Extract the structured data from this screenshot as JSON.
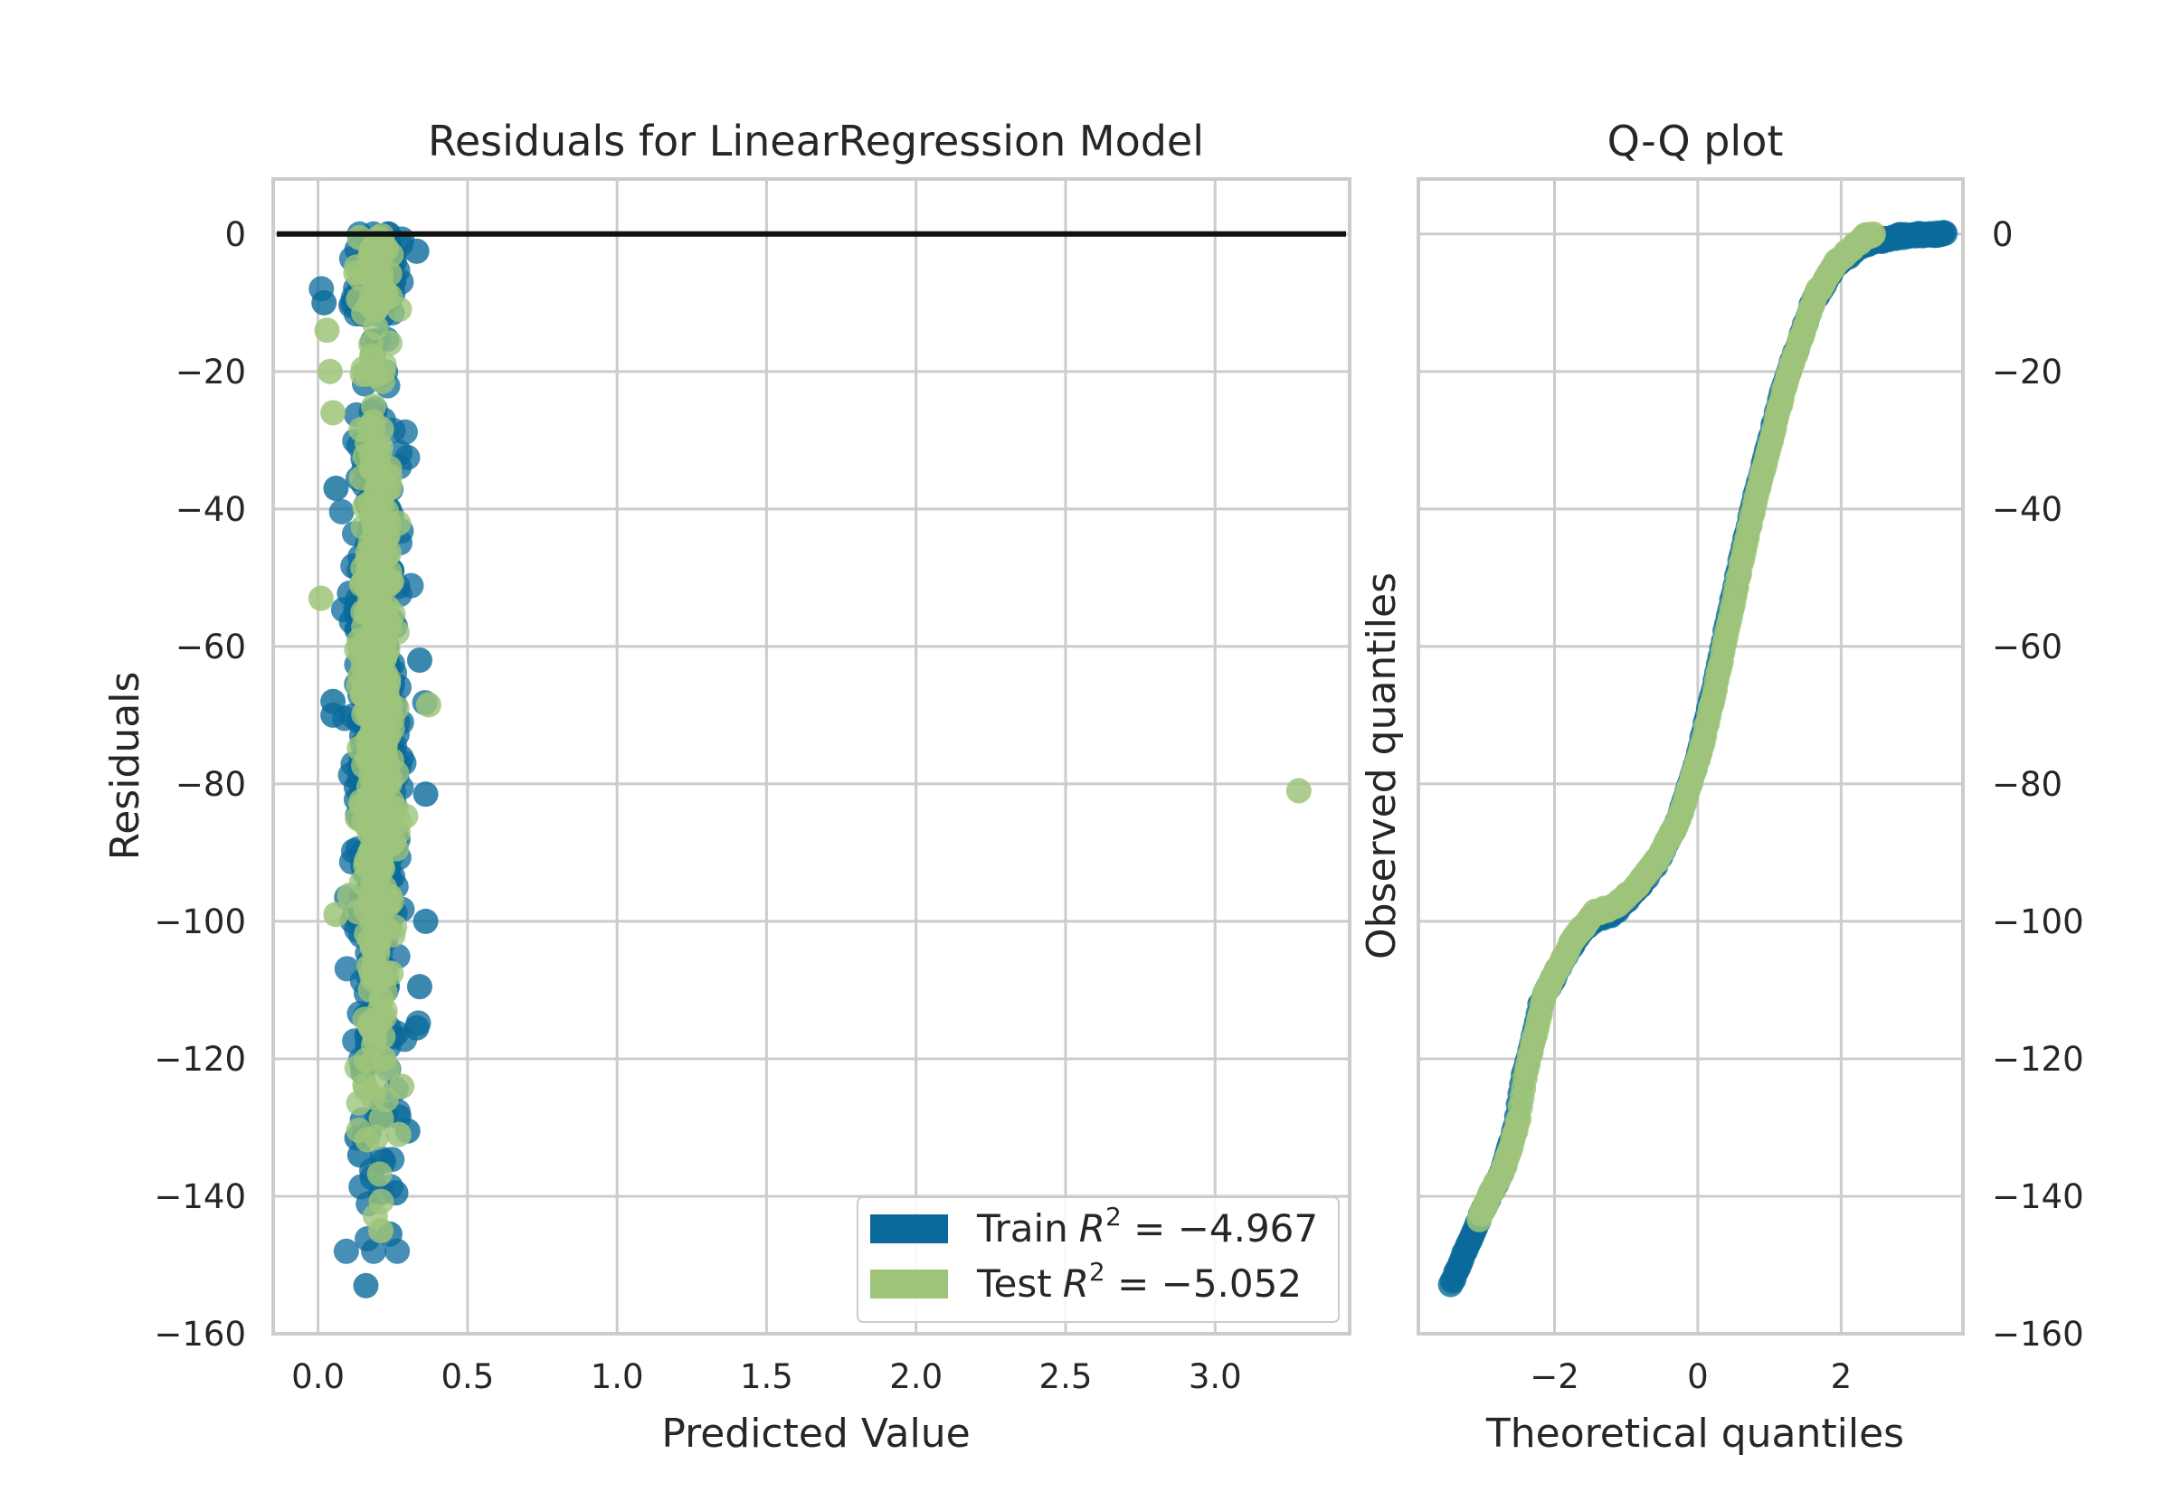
{
  "colors": {
    "train": "#0a6a9b",
    "test": "#9ec47a",
    "zero_line": "#111111",
    "grid": "#cccccc"
  },
  "chart_data": [
    {
      "type": "scatter",
      "title": "Residuals for LinearRegression Model",
      "xlabel": "Predicted Value",
      "ylabel": "Residuals",
      "xlim": [
        -0.15,
        3.45
      ],
      "ylim": [
        -160,
        8
      ],
      "xticks": [
        "0.0",
        "0.5",
        "1.0",
        "1.5",
        "2.0",
        "2.5",
        "3.0"
      ],
      "yticks": [
        "0",
        "−20",
        "−40",
        "−60",
        "−80",
        "−100",
        "−120",
        "−140",
        "−160"
      ],
      "grid": true,
      "hline": 0,
      "legend": {
        "placement": "lower-right",
        "entries": [
          {
            "name": "Train",
            "r2_label": "R",
            "r2_exp": "2",
            "r2_value": " = −4.967"
          },
          {
            "name": "Test",
            "r2_label": "R",
            "r2_exp": "2",
            "r2_value": " = −5.052"
          }
        ]
      },
      "series": [
        {
          "name": "Train",
          "notable_points": [
            {
              "x": 0.16,
              "y": -153
            },
            {
              "x": 0.24,
              "y": -145.5
            },
            {
              "x": 0.13,
              "y": -131.5
            },
            {
              "x": 0.14,
              "y": -134
            },
            {
              "x": 0.26,
              "y": -139.5
            },
            {
              "x": 0.21,
              "y": -139.5
            },
            {
              "x": 0.3,
              "y": -130.5
            },
            {
              "x": 0.15,
              "y": -122
            },
            {
              "x": 0.33,
              "y": -115.5
            },
            {
              "x": 0.34,
              "y": -109.5
            },
            {
              "x": 0.05,
              "y": -68
            },
            {
              "x": 0.05,
              "y": -70
            },
            {
              "x": 0.34,
              "y": -62
            },
            {
              "x": 0.36,
              "y": -100
            },
            {
              "x": 0.06,
              "y": -37
            },
            {
              "x": 0.02,
              "y": -10
            },
            {
              "x": 0.33,
              "y": -2.5
            },
            {
              "x": 0.36,
              "y": -81.5
            }
          ]
        },
        {
          "name": "Test",
          "notable_points": [
            {
              "x": 3.28,
              "y": -81
            },
            {
              "x": 0.01,
              "y": -53
            },
            {
              "x": 0.37,
              "y": -68.5
            },
            {
              "x": 0.06,
              "y": -99
            },
            {
              "x": 0.05,
              "y": -26
            },
            {
              "x": 0.04,
              "y": -20
            },
            {
              "x": 0.03,
              "y": -14
            },
            {
              "x": 0.21,
              "y": -145
            },
            {
              "x": 0.28,
              "y": -124
            },
            {
              "x": 0.27,
              "y": -131
            },
            {
              "x": 0.22,
              "y": -120
            }
          ]
        }
      ]
    },
    {
      "type": "scatter",
      "title": "Q-Q plot",
      "xlabel": "Theoretical quantiles",
      "ylabel": "Observed quantiles",
      "xlim": [
        -3.9,
        3.7
      ],
      "ylim": [
        -160,
        8
      ],
      "xticks": [
        "−2",
        "0",
        "2"
      ],
      "yticks": [
        "0",
        "−20",
        "−40",
        "−60",
        "−80",
        "−100",
        "−120",
        "−140",
        "−160"
      ],
      "grid": true,
      "curve_points": [
        [
          -3.45,
          -153
        ],
        [
          -3.15,
          -145.5
        ],
        [
          -2.95,
          -141
        ],
        [
          -2.75,
          -137
        ],
        [
          -2.55,
          -130
        ],
        [
          -2.45,
          -123
        ],
        [
          -2.3,
          -117
        ],
        [
          -2.2,
          -112
        ],
        [
          -2.0,
          -108
        ],
        [
          -1.8,
          -104
        ],
        [
          -1.5,
          -100
        ],
        [
          -1.2,
          -99
        ],
        [
          -0.9,
          -96
        ],
        [
          -0.6,
          -92
        ],
        [
          -0.3,
          -86
        ],
        [
          0.0,
          -76
        ],
        [
          0.2,
          -67
        ],
        [
          0.4,
          -57
        ],
        [
          0.6,
          -47
        ],
        [
          0.8,
          -38
        ],
        [
          1.0,
          -30
        ],
        [
          1.2,
          -22
        ],
        [
          1.4,
          -16
        ],
        [
          1.6,
          -10
        ],
        [
          1.9,
          -5
        ],
        [
          2.3,
          -1.5
        ],
        [
          2.8,
          -0.3
        ],
        [
          3.45,
          0
        ]
      ]
    }
  ]
}
